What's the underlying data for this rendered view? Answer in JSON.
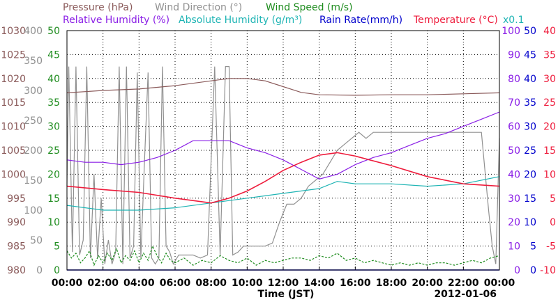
{
  "chart_data": {
    "type": "line",
    "legend": {
      "row1": [
        {
          "text": "Pressure (hPa)",
          "color": "#8a5a5a"
        },
        {
          "text": "Wind Direction (°)",
          "color": "#909090"
        },
        {
          "text": "Wind Speed (m/s)",
          "color": "#1e8c1e"
        }
      ],
      "row2": [
        {
          "text": "Relative Humidity (%)",
          "color": "#8a1ee6"
        },
        {
          "text": "Absolute Humidity (g/m³)",
          "color": "#1eb4b4"
        },
        {
          "text": "Rain Rate(mm/h)",
          "color": "#0000cc"
        },
        {
          "text": "Temperature (°C)",
          "color": "#ee1c3c"
        }
      ],
      "multiplier": "x0.1"
    },
    "xlabel": "Time (JST)",
    "date": "2012-01-06",
    "x_ticks": [
      "00:00",
      "02:00",
      "04:00",
      "06:00",
      "08:00",
      "10:00",
      "12:00",
      "14:00",
      "16:00",
      "18:00",
      "20:00",
      "22:00",
      "00:00"
    ],
    "axes": {
      "pressure": {
        "ticks": [
          "1030",
          "1025",
          "1020",
          "1015",
          "1010",
          "1005",
          "1000",
          "995",
          "990",
          "985",
          "980"
        ],
        "range": [
          980,
          1030
        ],
        "color": "#8a5a5a"
      },
      "wind_direction": {
        "ticks": [
          "400",
          "350",
          "300",
          "250",
          "200",
          "150",
          "100",
          "50",
          "0"
        ],
        "range": [
          0,
          400
        ],
        "color": "#909090"
      },
      "wind_speed": {
        "ticks": [
          "50",
          "45",
          "40",
          "35",
          "30",
          "25",
          "20",
          "15",
          "10",
          "5",
          "0"
        ],
        "range": [
          0,
          50
        ],
        "color": "#1e8c1e"
      },
      "relative_humidity": {
        "ticks": [
          "100",
          "90",
          "80",
          "70",
          "60",
          "50",
          "40",
          "30",
          "20",
          "10",
          "0"
        ],
        "range": [
          0,
          100
        ],
        "color": "#8a1ee6"
      },
      "rain_rate": {
        "ticks": [
          "50",
          "45",
          "40",
          "35",
          "30",
          "25",
          "20",
          "15",
          "10",
          "5",
          "0"
        ],
        "range": [
          0,
          50
        ],
        "color": "#0000cc"
      },
      "temperature": {
        "ticks": [
          "40",
          "35",
          "30",
          "25",
          "20",
          "15",
          "10",
          "5",
          "0",
          "-5",
          "-10"
        ],
        "range": [
          -10,
          40
        ],
        "color": "#ee1c3c"
      }
    },
    "series": [
      {
        "name": "Pressure (hPa)",
        "axis": "pressure",
        "color": "#8a5a5a",
        "x": [
          0,
          2,
          4,
          6,
          8,
          9,
          10,
          11,
          12,
          13,
          14,
          16,
          18,
          20,
          22,
          24
        ],
        "y": [
          1017,
          1017.5,
          1017.8,
          1018.5,
          1019.5,
          1020,
          1020,
          1019.5,
          1018.3,
          1017.1,
          1016.6,
          1016.5,
          1016.6,
          1016.6,
          1016.8,
          1017
        ]
      },
      {
        "name": "Relative Humidity (%)",
        "axis": "relative_humidity",
        "color": "#8a1ee6",
        "x": [
          0,
          1,
          2,
          3,
          4,
          5,
          6,
          7,
          8,
          9,
          10,
          11,
          12,
          13,
          14,
          15,
          16,
          17,
          18,
          19,
          20,
          21,
          22,
          23,
          24
        ],
        "y": [
          46,
          45,
          45,
          44,
          45,
          47,
          50,
          54,
          54,
          54,
          51,
          49,
          46,
          42,
          38,
          40,
          44,
          47,
          49,
          52,
          55,
          57,
          60,
          63,
          66
        ]
      },
      {
        "name": "Absolute Humidity (g/m³)",
        "axis": "relative_humidity",
        "color": "#1eb4b4",
        "x": [
          0,
          2,
          4,
          6,
          8,
          10,
          12,
          14,
          15,
          16,
          18,
          20,
          22,
          24
        ],
        "y": [
          27,
          25,
          25,
          26,
          28,
          30,
          32,
          34,
          37,
          36,
          36,
          35,
          36,
          39
        ]
      },
      {
        "name": "Temperature (°C)",
        "axis": "temperature",
        "color": "#ee1c3c",
        "x": [
          0,
          2,
          4,
          6,
          8,
          9,
          10,
          11,
          12,
          13,
          14,
          15,
          16,
          18,
          20,
          22,
          24
        ],
        "y": [
          7.5,
          6.8,
          6.2,
          5.0,
          4.0,
          5.0,
          6.5,
          8.5,
          10.8,
          12.5,
          14,
          14.5,
          13.8,
          11.8,
          9.5,
          8,
          7.5
        ]
      },
      {
        "name": "Wind Direction (°)",
        "axis": "wind_direction",
        "color": "#909090",
        "x": [
          0,
          0.1,
          0.3,
          0.5,
          0.7,
          0.9,
          1.1,
          1.3,
          1.5,
          1.7,
          1.9,
          2.1,
          2.3,
          2.5,
          2.7,
          2.9,
          3.1,
          3.3,
          3.5,
          3.7,
          3.9,
          4.1,
          4.3,
          4.5,
          4.7,
          4.9,
          5.1,
          5.3,
          5.5,
          5.7,
          5.9,
          6.2,
          6.6,
          7.0,
          7.4,
          7.8,
          8.2,
          8.5,
          8.8,
          9.0,
          9.2,
          9.5,
          9.8,
          10.2,
          10.6,
          11.0,
          11.4,
          11.8,
          12.2,
          12.6,
          13.0,
          13.4,
          13.8,
          14.2,
          14.6,
          15.0,
          15.4,
          15.8,
          16.2,
          16.6,
          17.0,
          17.4,
          17.8,
          18.2,
          18.6,
          19.0,
          19.4,
          19.8,
          20.2,
          20.6,
          21.0,
          21.4,
          21.8,
          22.2,
          22.6,
          23.0,
          23.4,
          23.6,
          23.8,
          24
        ],
        "y": [
          140,
          340,
          30,
          340,
          25,
          50,
          340,
          20,
          160,
          20,
          120,
          10,
          50,
          10,
          30,
          340,
          10,
          340,
          20,
          40,
          330,
          20,
          180,
          330,
          20,
          10,
          20,
          340,
          40,
          30,
          10,
          25,
          25,
          25,
          20,
          25,
          340,
          25,
          340,
          340,
          25,
          30,
          40,
          40,
          40,
          40,
          45,
          80,
          110,
          110,
          120,
          140,
          150,
          160,
          180,
          200,
          210,
          220,
          230,
          220,
          230,
          230,
          230,
          230,
          230,
          230,
          230,
          230,
          230,
          230,
          230,
          230,
          230,
          230,
          230,
          230,
          100,
          40,
          10,
          220
        ]
      },
      {
        "name": "Wind Speed (m/s)",
        "axis": "wind_speed",
        "color": "#1e8c1e",
        "x": [
          0,
          0.25,
          0.5,
          0.75,
          1,
          1.25,
          1.5,
          1.75,
          2,
          2.25,
          2.5,
          2.75,
          3,
          3.25,
          3.5,
          3.75,
          4,
          4.25,
          4.5,
          4.75,
          5,
          5.25,
          5.5,
          5.75,
          6,
          6.5,
          7,
          7.5,
          8,
          8.5,
          9,
          9.5,
          10,
          10.5,
          11,
          11.5,
          12,
          12.5,
          13,
          13.5,
          14,
          14.5,
          15,
          15.5,
          16,
          16.5,
          17,
          17.5,
          18,
          18.5,
          19,
          19.5,
          20,
          20.5,
          21,
          21.5,
          22,
          22.5,
          23,
          23.5,
          24
        ],
        "y": [
          4,
          2.5,
          3.5,
          1.5,
          2.5,
          4,
          1,
          3,
          1.5,
          3.5,
          2,
          4.5,
          1.5,
          3,
          2,
          4,
          1.5,
          3.5,
          2,
          5,
          3,
          1.5,
          3.5,
          2,
          1.5,
          2.5,
          1,
          2,
          1.5,
          3,
          2,
          1.5,
          2.5,
          1,
          2,
          1.5,
          2,
          2.5,
          2.5,
          2,
          3,
          2.5,
          3.5,
          2,
          2.5,
          1.5,
          2,
          1.5,
          1,
          1.5,
          1,
          1.5,
          1,
          1.5,
          1.5,
          1,
          1.5,
          2,
          1.5,
          2.5,
          3
        ]
      },
      {
        "name": "Rain Rate(mm/h)",
        "axis": "rain_rate",
        "color": "#0000cc",
        "x": [
          0,
          24
        ],
        "y": [
          0,
          0
        ]
      }
    ]
  }
}
